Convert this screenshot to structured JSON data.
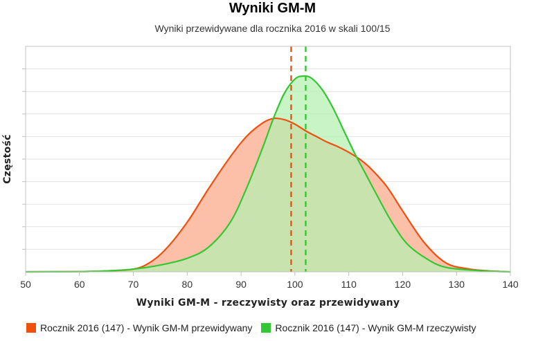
{
  "chart_data": {
    "type": "area",
    "title": "Wyniki GM-M",
    "subtitle": "Wyniki przewidywane dla rocznika 2016 w skali 100/15",
    "xlabel": "Wyniki GM-M - rzeczywisty oraz przewidywany",
    "ylabel": "Częstość",
    "xlim": [
      50,
      140
    ],
    "ylim": [
      0,
      1
    ],
    "x_ticks": [
      50,
      60,
      70,
      80,
      90,
      100,
      110,
      120,
      130,
      140
    ],
    "grid": true,
    "legend_position": "bottom-left",
    "series": [
      {
        "name": "Rocznik 2016 (147) - Wynik GM-M przewidywany",
        "color": "#f0500e",
        "fill": "#fcc0a8",
        "mean": 99.3,
        "x": [
          50,
          60,
          65,
          70,
          73,
          76,
          80,
          84,
          88,
          91,
          94,
          96,
          98,
          100,
          102,
          104,
          106,
          108,
          110,
          112,
          114,
          117,
          120,
          124,
          128,
          132,
          136,
          140
        ],
        "y": [
          0,
          0.001,
          0.004,
          0.012,
          0.04,
          0.1,
          0.22,
          0.37,
          0.51,
          0.6,
          0.66,
          0.68,
          0.675,
          0.655,
          0.625,
          0.6,
          0.575,
          0.555,
          0.53,
          0.5,
          0.46,
          0.38,
          0.27,
          0.13,
          0.04,
          0.014,
          0.004,
          0
        ]
      },
      {
        "name": "Rocznik 2016 (147) - Wynik GM-M rzeczywisty",
        "color": "#34c734",
        "fill": "#b4f0b0",
        "mean": 102,
        "x": [
          50,
          60,
          65,
          70,
          75,
          80,
          84,
          88,
          91,
          94,
          96,
          98,
          100,
          101.5,
          103,
          105,
          107,
          109,
          111,
          113,
          115,
          118,
          121,
          125,
          128,
          132,
          136,
          140
        ],
        "y": [
          0,
          0.001,
          0.004,
          0.012,
          0.03,
          0.06,
          0.11,
          0.22,
          0.37,
          0.55,
          0.68,
          0.79,
          0.855,
          0.868,
          0.86,
          0.81,
          0.73,
          0.63,
          0.53,
          0.44,
          0.35,
          0.22,
          0.12,
          0.05,
          0.02,
          0.009,
          0.003,
          0
        ]
      }
    ]
  }
}
